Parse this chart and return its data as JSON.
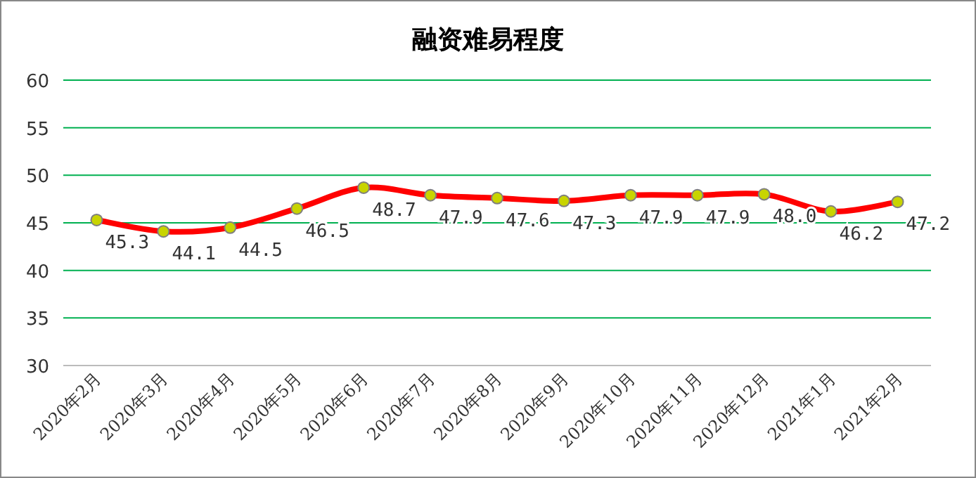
{
  "chart_data": {
    "type": "line",
    "title": "融资难易程度",
    "categories": [
      "2020年2月",
      "2020年3月",
      "2020年4月",
      "2020年5月",
      "2020年6月",
      "2020年7月",
      "2020年8月",
      "2020年9月",
      "2020年10月",
      "2020年11月",
      "2020年12月",
      "2021年1月",
      "2021年2月"
    ],
    "series": [
      {
        "color": "#ff0000",
        "values": [
          45.3,
          44.1,
          44.5,
          46.5,
          48.7,
          47.9,
          47.6,
          47.3,
          47.9,
          47.9,
          48.0,
          46.2,
          47.2
        ],
        "value_labels": [
          "45.3",
          "44.1",
          "44.5",
          "46.5",
          "48.7",
          "47.9",
          "47.6",
          "47.3",
          "47.9",
          "47.9",
          "48.0",
          "46.2",
          "47.2"
        ]
      }
    ],
    "ylim": [
      30,
      60
    ],
    "yticks": [
      30,
      35,
      40,
      45,
      50,
      55,
      60
    ],
    "grid": "y",
    "marker": "circle"
  }
}
